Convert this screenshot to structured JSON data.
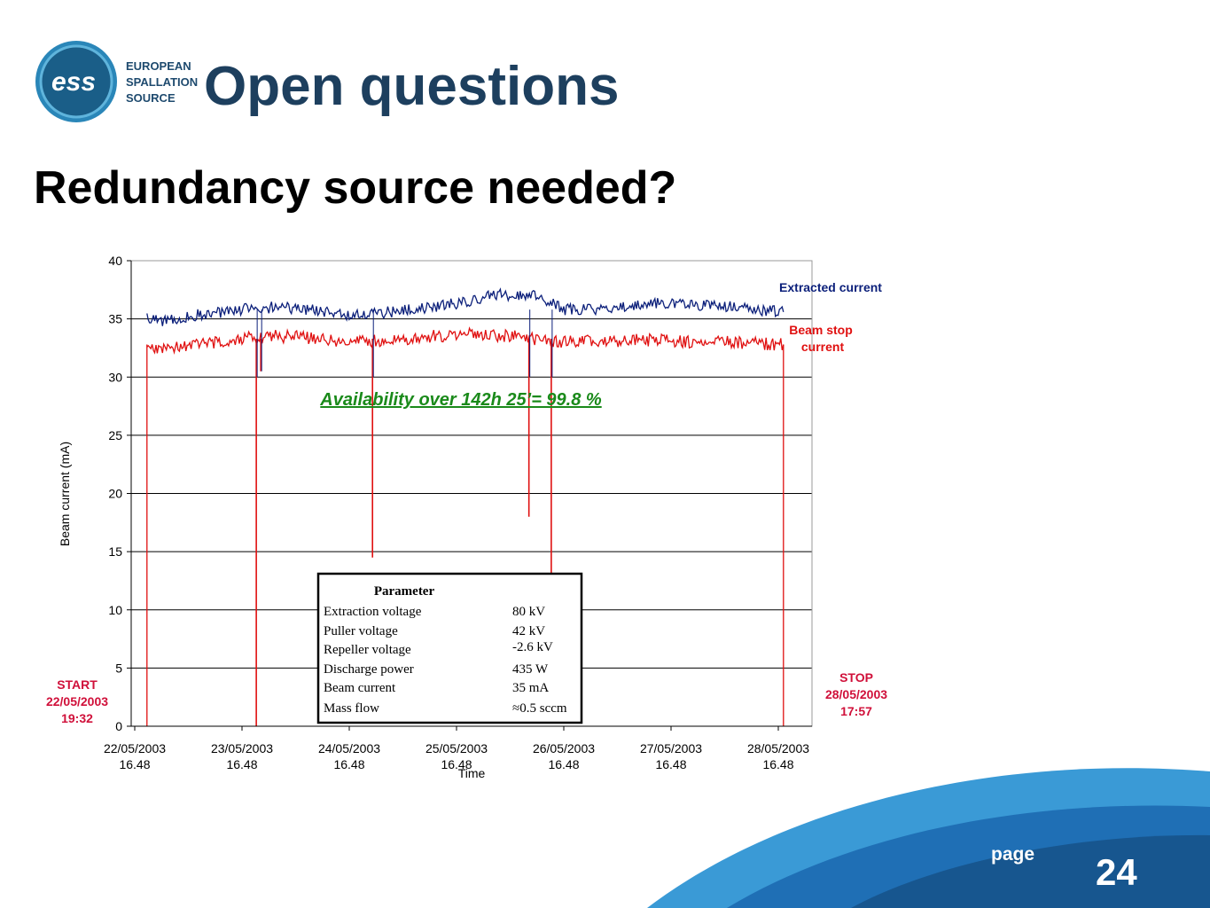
{
  "logo": {
    "line1": "EUROPEAN",
    "line2": "SPALLATION",
    "line3": "SOURCE",
    "icon": "ess-logo"
  },
  "slide": {
    "title": "Open questions",
    "subtitle": "Redundancy source needed?",
    "page_label": "page",
    "page_number": "24"
  },
  "colors": {
    "title": "#1d3f5e",
    "extracted": "#0b1f7a",
    "beamstop": "#e01010",
    "availability": "#1a8a1a",
    "annotation": "#d0103a",
    "swoosh": "#1f6fb5"
  },
  "chart_data": {
    "type": "line",
    "xlabel": "Time",
    "ylabel": "Beam current (mA)",
    "ylim": [
      0,
      40
    ],
    "yticks": [
      "0",
      "5",
      "10",
      "15",
      "20",
      "25",
      "30",
      "35",
      "40"
    ],
    "xticks": [
      {
        "date": "22/05/2003",
        "time": "16.48"
      },
      {
        "date": "23/05/2003",
        "time": "16.48"
      },
      {
        "date": "24/05/2003",
        "time": "16.48"
      },
      {
        "date": "25/05/2003",
        "time": "16.48"
      },
      {
        "date": "26/05/2003",
        "time": "16.48"
      },
      {
        "date": "27/05/2003",
        "time": "16.48"
      },
      {
        "date": "28/05/2003",
        "time": "16.48"
      }
    ],
    "grid": true,
    "series": [
      {
        "name": "Extracted current",
        "x": [
          "22/05/2003 19:32",
          "22/05/2003 23:00",
          "23/05/2003 06:00",
          "23/05/2003 16:48",
          "24/05/2003 00:00",
          "24/05/2003 08:00",
          "24/05/2003 16:48",
          "25/05/2003 02:00",
          "25/05/2003 12:00",
          "25/05/2003 20:00",
          "26/05/2003 02:00",
          "26/05/2003 10:00",
          "26/05/2003 16:48",
          "27/05/2003 02:00",
          "27/05/2003 12:00",
          "27/05/2003 20:00",
          "28/05/2003 06:00",
          "28/05/2003 17:57"
        ],
        "values": [
          35.2,
          34.8,
          35.3,
          35.8,
          36.0,
          35.8,
          35.2,
          35.6,
          36.0,
          36.6,
          37.1,
          37.0,
          35.8,
          35.8,
          36.3,
          36.3,
          36.0,
          35.6
        ]
      },
      {
        "name": "Beam stop current",
        "x": [
          "22/05/2003 19:32",
          "22/05/2003 23:00",
          "23/05/2003 06:00",
          "23/05/2003 16:48",
          "24/05/2003 00:00",
          "24/05/2003 08:00",
          "24/05/2003 16:48",
          "25/05/2003 02:00",
          "25/05/2003 12:00",
          "25/05/2003 20:00",
          "26/05/2003 02:00",
          "26/05/2003 10:00",
          "26/05/2003 16:48",
          "27/05/2003 02:00",
          "27/05/2003 12:00",
          "27/05/2003 20:00",
          "28/05/2003 06:00",
          "28/05/2003 17:57"
        ],
        "values": [
          32.8,
          32.3,
          32.8,
          33.3,
          33.5,
          33.4,
          33.0,
          33.2,
          33.5,
          33.8,
          33.6,
          33.3,
          33.0,
          33.1,
          33.2,
          33.0,
          33.0,
          32.8
        ]
      }
    ],
    "drops": [
      {
        "x": "23/05/2003 20:00",
        "extracted": 0,
        "beamstop": 0
      },
      {
        "x": "23/05/2003 21:00",
        "extracted": 30.5,
        "beamstop": 30.5
      },
      {
        "x": "24/05/2003 22:00",
        "extracted": 14.5,
        "beamstop": 14.5
      },
      {
        "x": "26/05/2003 09:00",
        "extracted": 18.0,
        "beamstop": 18.0
      },
      {
        "x": "26/05/2003 14:00",
        "extracted": 2.0,
        "beamstop": 2.0
      }
    ],
    "legend": {
      "extracted": "Extracted current",
      "beamstop": "Beam stop current"
    },
    "availability": "Availability over 142h 25’= 99.8 %",
    "start_label": [
      "START",
      "22/05/2003",
      "19:32"
    ],
    "stop_label": [
      "STOP",
      "28/05/2003",
      "17:57"
    ],
    "table": {
      "header": "Parameter",
      "rows": [
        {
          "name": "Extraction voltage",
          "value": "80 kV"
        },
        {
          "name": "Puller voltage",
          "value": "42 kV"
        },
        {
          "name": "Repeller voltage",
          "value": "-2.6 kV"
        },
        {
          "name": "Discharge power",
          "value": "435 W"
        },
        {
          "name": "Beam current",
          "value": "35 mA"
        },
        {
          "name": "Mass flow",
          "value": "≈0.5 sccm"
        }
      ]
    }
  }
}
